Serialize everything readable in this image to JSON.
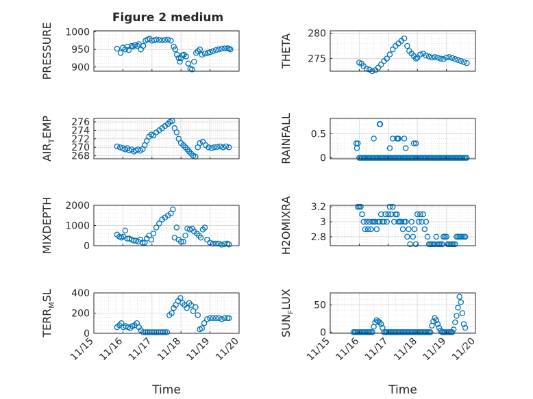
{
  "figure": {
    "title": "Figure 2 medium"
  },
  "colors": {
    "marker": "#0072BD",
    "axis": "#262626",
    "grid": "#dcdcdc"
  },
  "chart_data": [
    {
      "type": "scatter",
      "ylabel": "PRESSURE",
      "ylim": [
        888,
        1003
      ],
      "yticks": [
        900,
        950,
        1000
      ],
      "xlim": [
        0,
        5
      ],
      "xticklabels": [
        "11/15",
        "11/16",
        "11/17",
        "11/18",
        "11/19",
        "11/20"
      ],
      "show_xticklabels": false,
      "xlabel": "",
      "x": [
        0.8,
        0.92,
        1.0,
        1.08,
        1.15,
        1.2,
        1.3,
        1.35,
        1.42,
        1.5,
        1.55,
        1.62,
        1.7,
        1.78,
        1.85,
        1.92,
        2.0,
        2.08,
        2.15,
        2.25,
        2.35,
        2.45,
        2.55,
        2.65,
        2.75,
        2.8,
        2.86,
        2.92,
        2.96,
        3.0,
        3.05,
        3.1,
        3.18,
        3.25,
        3.32,
        3.38,
        3.45,
        3.52,
        3.58,
        3.65,
        3.72,
        3.82,
        3.92,
        4.0,
        4.1,
        4.2,
        4.3,
        4.4,
        4.5,
        4.6,
        4.65,
        4.7
      ],
      "y": [
        952,
        940,
        955,
        950,
        958,
        948,
        960,
        958,
        962,
        960,
        965,
        950,
        960,
        975,
        978,
        980,
        975,
        976,
        978,
        977,
        976,
        977,
        978,
        975,
        958,
        950,
        935,
        925,
        915,
        925,
        933,
        935,
        930,
        910,
        895,
        893,
        915,
        940,
        945,
        950,
        935,
        938,
        940,
        942,
        945,
        948,
        950,
        952,
        953,
        953,
        952,
        950
      ],
      "title": "Figure 2 medium"
    },
    {
      "type": "scatter",
      "ylabel": "THETA",
      "ylim": [
        272.5,
        280.5
      ],
      "yticks": [
        275,
        280
      ],
      "xlim": [
        0,
        5
      ],
      "xticklabels": [
        "11/15",
        "11/16",
        "11/17",
        "11/18",
        "11/19",
        "11/20"
      ],
      "show_xticklabels": false,
      "xlabel": "",
      "x": [
        1.0,
        1.08,
        1.15,
        1.25,
        1.35,
        1.45,
        1.55,
        1.65,
        1.75,
        1.85,
        1.95,
        2.05,
        2.15,
        2.25,
        2.35,
        2.45,
        2.55,
        2.65,
        2.72,
        2.8,
        2.88,
        2.95,
        3.0,
        3.1,
        3.2,
        3.3,
        3.4,
        3.5,
        3.6,
        3.7,
        3.8,
        3.9,
        4.0,
        4.1,
        4.2,
        4.3,
        4.4,
        4.5,
        4.6,
        4.7
      ],
      "y": [
        274.2,
        274.0,
        273.5,
        273.0,
        272.8,
        272.5,
        272.7,
        273.2,
        273.8,
        274.5,
        275.0,
        275.8,
        276.8,
        277.5,
        278.0,
        278.5,
        279.0,
        277.5,
        276.5,
        276.0,
        275.5,
        275.0,
        275.2,
        275.8,
        276.0,
        275.6,
        275.4,
        275.2,
        275.3,
        275.2,
        275.0,
        274.9,
        275.2,
        275.3,
        275.1,
        274.9,
        274.7,
        274.5,
        274.3,
        274.1
      ]
    },
    {
      "type": "scatter",
      "ylabel": "AIR_TEMP",
      "ylabel_parts": [
        "AIR",
        "T",
        "EMP"
      ],
      "ylim": [
        267.3,
        276.8
      ],
      "yticks": [
        268,
        270,
        272,
        274,
        276
      ],
      "xlim": [
        0,
        5
      ],
      "xticklabels": [
        "11/15",
        "11/16",
        "11/17",
        "11/18",
        "11/19",
        "11/20"
      ],
      "show_xticklabels": false,
      "xlabel": "",
      "x": [
        0.8,
        0.9,
        1.0,
        1.08,
        1.15,
        1.22,
        1.3,
        1.38,
        1.45,
        1.52,
        1.6,
        1.68,
        1.75,
        1.82,
        1.9,
        1.98,
        2.05,
        2.15,
        2.25,
        2.35,
        2.45,
        2.55,
        2.62,
        2.7,
        2.78,
        2.85,
        2.92,
        3.0,
        3.08,
        3.15,
        3.22,
        3.28,
        3.35,
        3.42,
        3.5,
        3.58,
        3.65,
        3.75,
        3.85,
        3.95,
        4.05,
        4.15,
        4.25,
        4.35,
        4.45,
        4.55,
        4.65
      ],
      "y": [
        270.2,
        270.0,
        269.8,
        269.5,
        269.8,
        269.3,
        269.5,
        269.0,
        269.3,
        269.5,
        269.2,
        269.6,
        270.5,
        271.5,
        272.5,
        273.0,
        272.8,
        273.5,
        274.0,
        274.5,
        275.0,
        275.5,
        276.0,
        276.2,
        274.5,
        273.5,
        272.0,
        271.0,
        270.5,
        270.0,
        269.5,
        269.0,
        268.5,
        268.0,
        267.8,
        270.0,
        271.0,
        271.3,
        270.5,
        270.0,
        269.8,
        270.0,
        270.1,
        270.2,
        270.0,
        270.2,
        270.0
      ]
    },
    {
      "type": "scatter",
      "ylabel": "RAINFALL",
      "ylim": [
        -0.02,
        0.82
      ],
      "yticks": [
        0,
        0.5
      ],
      "xlim": [
        0,
        5
      ],
      "xticklabels": [
        "11/15",
        "11/16",
        "11/17",
        "11/18",
        "11/19",
        "11/20"
      ],
      "show_xticklabels": false,
      "xlabel": "",
      "x": [
        1.0,
        1.05,
        1.1,
        1.15,
        1.2,
        1.25,
        1.3,
        1.35,
        1.4,
        1.45,
        1.5,
        1.55,
        1.6,
        1.65,
        1.7,
        1.75,
        1.8,
        1.85,
        1.9,
        1.95,
        2.0,
        2.05,
        2.1,
        2.15,
        2.2,
        2.25,
        2.3,
        2.35,
        2.4,
        2.45,
        2.5,
        2.55,
        2.6,
        2.65,
        2.7,
        2.75,
        2.8,
        2.85,
        2.9,
        2.95,
        3.0,
        3.05,
        3.1,
        3.15,
        3.2,
        3.25,
        3.3,
        3.35,
        3.4,
        3.45,
        3.5,
        3.55,
        3.6,
        3.65,
        3.7,
        3.75,
        3.8,
        3.85,
        3.9,
        3.95,
        4.0,
        4.05,
        4.1,
        4.15,
        4.2,
        4.25,
        4.3,
        4.35,
        4.4,
        4.45,
        4.5,
        4.55,
        4.6,
        4.65,
        4.7,
        0.9,
        0.95,
        0.92,
        1.5,
        1.7,
        1.72,
        2.05,
        2.15,
        2.3,
        2.32,
        2.35,
        2.55,
        2.6,
        2.88,
        2.95
      ],
      "y": [
        0,
        0,
        0,
        0,
        0,
        0,
        0,
        0,
        0,
        0,
        0,
        0,
        0,
        0,
        0,
        0,
        0,
        0,
        0,
        0,
        0,
        0,
        0,
        0,
        0,
        0,
        0,
        0,
        0,
        0,
        0,
        0,
        0,
        0,
        0,
        0,
        0,
        0,
        0,
        0,
        0,
        0,
        0,
        0,
        0,
        0,
        0,
        0,
        0,
        0,
        0,
        0,
        0,
        0,
        0,
        0,
        0,
        0,
        0,
        0,
        0,
        0,
        0,
        0,
        0,
        0,
        0,
        0,
        0,
        0,
        0,
        0,
        0,
        0,
        0,
        0.3,
        0.3,
        0.2,
        0.4,
        0.7,
        0.7,
        0.2,
        0.4,
        0.4,
        0.4,
        0.4,
        0.4,
        0.2,
        0.3,
        0.3
      ]
    },
    {
      "type": "scatter",
      "ylabel": "MIXDEPTH",
      "ylim": [
        0,
        2000
      ],
      "yticks": [
        0,
        1000,
        2000
      ],
      "xlim": [
        0,
        5
      ],
      "xticklabels": [
        "11/15",
        "11/16",
        "11/17",
        "11/18",
        "11/19",
        "11/20"
      ],
      "show_xticklabels": false,
      "xlabel": "",
      "x": [
        0.8,
        0.88,
        0.95,
        1.02,
        1.08,
        1.15,
        1.22,
        1.3,
        1.38,
        1.45,
        1.52,
        1.6,
        1.68,
        1.75,
        1.82,
        1.9,
        1.98,
        2.05,
        2.15,
        2.25,
        2.35,
        2.45,
        2.55,
        2.65,
        2.72,
        2.78,
        2.85,
        2.92,
        3.0,
        3.08,
        3.15,
        3.22,
        3.3,
        3.38,
        3.45,
        3.55,
        3.62,
        3.68,
        3.75,
        3.82,
        3.9,
        4.0,
        4.1,
        4.2,
        4.3,
        4.4,
        4.5,
        4.6,
        4.65
      ],
      "y": [
        550,
        450,
        400,
        450,
        750,
        350,
        350,
        300,
        250,
        250,
        200,
        300,
        150,
        150,
        350,
        500,
        300,
        600,
        900,
        1100,
        1300,
        1400,
        1500,
        1600,
        1800,
        400,
        900,
        300,
        200,
        200,
        500,
        850,
        800,
        850,
        700,
        600,
        500,
        400,
        800,
        900,
        300,
        150,
        100,
        100,
        100,
        50,
        80,
        100,
        60
      ]
    },
    {
      "type": "scatter",
      "ylabel": "H2OMIXRA",
      "ylim": [
        2.68,
        3.22
      ],
      "yticks": [
        2.8,
        3,
        3.2
      ],
      "xlim": [
        0,
        5
      ],
      "xticklabels": [
        "11/15",
        "11/16",
        "11/17",
        "11/18",
        "11/19",
        "11/20"
      ],
      "show_xticklabels": false,
      "xlabel": "",
      "x": [
        0.95,
        1.0,
        1.05,
        1.1,
        1.15,
        1.2,
        1.25,
        1.3,
        1.35,
        1.4,
        1.45,
        1.5,
        1.55,
        1.6,
        1.65,
        1.7,
        1.75,
        1.8,
        1.85,
        1.9,
        1.95,
        2.0,
        2.05,
        2.1,
        2.15,
        2.2,
        2.25,
        2.3,
        2.35,
        2.4,
        2.45,
        2.5,
        2.55,
        2.6,
        2.65,
        2.7,
        2.75,
        2.8,
        2.85,
        2.9,
        2.95,
        3.0,
        3.05,
        3.1,
        3.15,
        3.2,
        3.25,
        3.3,
        3.35,
        3.4,
        3.45,
        3.5,
        3.55,
        3.6,
        3.65,
        3.7,
        3.75,
        3.8,
        3.85,
        3.9,
        3.95,
        4.0,
        4.05,
        4.1,
        4.15,
        4.2,
        4.25,
        4.3,
        4.35,
        4.4,
        4.45,
        4.5,
        4.55,
        4.6,
        4.65
      ],
      "y": [
        3.2,
        3.2,
        3.2,
        3.1,
        3.0,
        2.9,
        3.0,
        2.9,
        3.0,
        2.9,
        3.0,
        3.0,
        3.0,
        2.9,
        3.0,
        3.0,
        3.1,
        3.0,
        3.0,
        3.1,
        3.0,
        3.1,
        3.2,
        3.1,
        3.2,
        3.0,
        3.1,
        3.1,
        3.0,
        3.0,
        3.0,
        2.9,
        3.0,
        3.0,
        2.8,
        2.9,
        2.7,
        3.0,
        2.8,
        2.9,
        2.7,
        3.1,
        3.0,
        3.1,
        3.0,
        3.1,
        2.9,
        3.0,
        2.8,
        2.7,
        2.7,
        2.7,
        2.7,
        2.7,
        2.8,
        2.7,
        2.7,
        2.7,
        2.7,
        2.8,
        2.8,
        2.8,
        2.7,
        2.7,
        2.7,
        2.7,
        2.7,
        2.7,
        2.8,
        2.8,
        2.8,
        2.8,
        2.8,
        2.8,
        2.8
      ]
    },
    {
      "type": "scatter",
      "ylabel": "TERR_MSL",
      "ylabel_parts": [
        "TERR",
        "M",
        "SL"
      ],
      "ylim": [
        0,
        400
      ],
      "yticks": [
        0,
        200,
        400
      ],
      "xlim": [
        0,
        5
      ],
      "xticklabels": [
        "11/15",
        "11/16",
        "11/17",
        "11/18",
        "11/19",
        "11/20"
      ],
      "show_xticklabels": true,
      "xlabel": "Time",
      "x": [
        0.8,
        0.88,
        0.95,
        1.02,
        1.1,
        1.18,
        1.25,
        1.32,
        1.4,
        1.48,
        1.55,
        1.62,
        1.7,
        1.78,
        1.85,
        1.92,
        2.0,
        2.08,
        2.15,
        2.22,
        2.3,
        2.38,
        2.45,
        2.52,
        2.6,
        2.68,
        2.75,
        2.82,
        2.9,
        2.98,
        3.05,
        3.12,
        3.2,
        3.28,
        3.35,
        3.42,
        3.5,
        3.58,
        3.65,
        3.72,
        3.8,
        3.9,
        4.0,
        4.1,
        4.2,
        4.3,
        4.4,
        4.5,
        4.6,
        4.65
      ],
      "y": [
        60,
        80,
        100,
        60,
        70,
        60,
        50,
        70,
        80,
        100,
        60,
        30,
        10,
        10,
        10,
        10,
        10,
        10,
        10,
        10,
        10,
        10,
        10,
        10,
        180,
        200,
        250,
        280,
        320,
        350,
        300,
        280,
        250,
        300,
        280,
        220,
        260,
        180,
        40,
        50,
        100,
        140,
        150,
        150,
        150,
        150,
        140,
        150,
        150,
        150
      ]
    },
    {
      "type": "scatter",
      "ylabel": "SUN_FLUX",
      "ylabel_parts": [
        "SUN",
        "F",
        "LUX"
      ],
      "ylim": [
        -2,
        72
      ],
      "yticks": [
        0,
        50
      ],
      "xlim": [
        0,
        5
      ],
      "xticklabels": [
        "11/15",
        "11/16",
        "11/17",
        "11/18",
        "11/19",
        "11/20"
      ],
      "show_xticklabels": true,
      "xlabel": "Time",
      "x": [
        0.8,
        0.85,
        0.9,
        0.95,
        1.0,
        1.05,
        1.1,
        1.15,
        1.2,
        1.25,
        1.3,
        1.35,
        1.4,
        1.45,
        1.5,
        1.55,
        1.6,
        1.65,
        1.7,
        1.75,
        1.8,
        1.85,
        1.9,
        1.95,
        2.0,
        2.05,
        2.1,
        2.15,
        2.2,
        2.25,
        2.3,
        2.35,
        2.4,
        2.45,
        2.5,
        2.55,
        2.6,
        2.65,
        2.7,
        2.75,
        2.8,
        2.85,
        2.9,
        2.95,
        3.0,
        3.05,
        3.1,
        3.15,
        3.2,
        3.25,
        3.3,
        3.35,
        3.4,
        3.45,
        3.5,
        3.55,
        3.6,
        3.65,
        3.7,
        3.75,
        3.8,
        3.85,
        3.9,
        3.95,
        4.0,
        4.05,
        4.1,
        4.15,
        4.2,
        4.25,
        4.3,
        4.35,
        4.4,
        4.45,
        4.5,
        4.55,
        4.6,
        4.65
      ],
      "y": [
        0,
        0,
        0,
        0,
        0,
        0,
        0,
        0,
        0,
        0,
        0,
        0,
        0,
        0,
        10,
        18,
        22,
        20,
        18,
        15,
        8,
        0,
        0,
        0,
        0,
        0,
        0,
        0,
        0,
        0,
        0,
        0,
        0,
        0,
        0,
        0,
        0,
        0,
        0,
        0,
        0,
        0,
        0,
        0,
        0,
        0,
        0,
        0,
        0,
        0,
        0,
        0,
        0,
        0,
        12,
        20,
        26,
        22,
        15,
        8,
        3,
        0,
        0,
        0,
        0,
        0,
        0,
        0,
        0,
        5,
        18,
        30,
        45,
        65,
        55,
        35,
        15,
        8
      ]
    }
  ]
}
